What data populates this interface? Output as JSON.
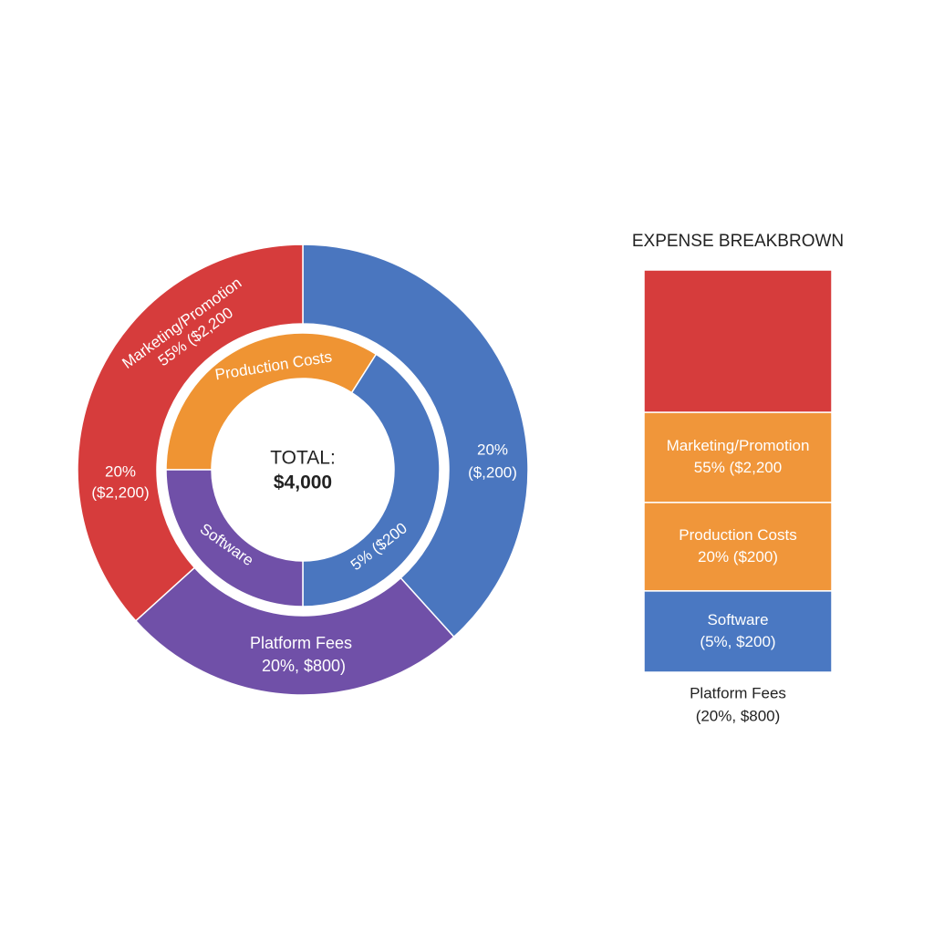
{
  "chart_data": [
    {
      "type": "donut",
      "center_texts": [
        "TOTAL:",
        "$4,000"
      ],
      "rings": [
        {
          "start_angle": 0,
          "values": [
            38.3,
            25,
            36.7
          ],
          "colors": [
            "#4a76bf",
            "#7050a8",
            "#d63c3c"
          ]
        },
        {
          "start_angle": 270,
          "values": [
            34,
            41,
            25
          ],
          "colors": [
            "#ef9433",
            "#4a76bf",
            "#7050a8"
          ]
        }
      ],
      "annotations": [
        "Marketing/Promotion",
        "55% ($2,200",
        "Production Costs",
        "20%",
        "($2,200)",
        "20%",
        "($,200)",
        "5% ($200",
        "Software",
        "Platform Fees",
        "20%, $800)"
      ]
    },
    {
      "type": "stacked-bar",
      "title": "EXPENSE BREAKBROWN",
      "segments": [
        {
          "color": "#d63c3c",
          "value": 35.4,
          "labels": []
        },
        {
          "color": "#f0963a",
          "value": 22.4,
          "labels": [
            "Marketing/Promotion",
            "55% ($2,200"
          ]
        },
        {
          "color": "#f0963a",
          "value": 22,
          "labels": [
            "Production Costs",
            "20% ($200)"
          ]
        },
        {
          "color": "#4a78c2",
          "value": 20.2,
          "labels": [
            "Software",
            "(5%, $200)"
          ]
        }
      ],
      "below_labels": [
        "Platform Fees",
        "(20%, $800)"
      ]
    }
  ]
}
